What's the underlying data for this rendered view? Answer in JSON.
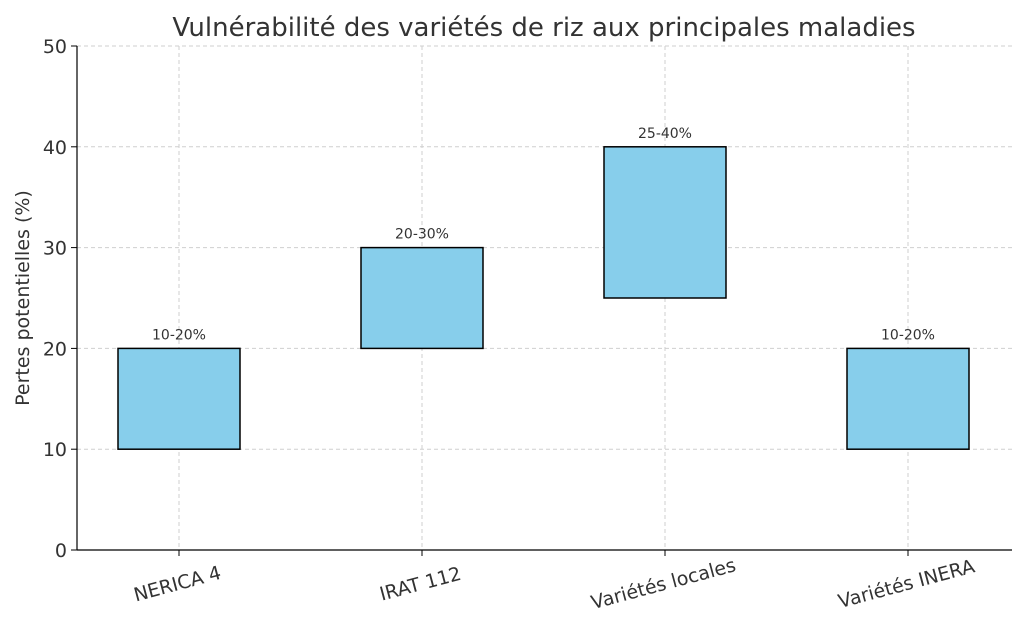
{
  "chart_data": {
    "type": "bar",
    "title": "Vulnérabilité des variétés de riz aux principales maladies",
    "xlabel": "",
    "ylabel": "Pertes potentielles (%)",
    "ylim": [
      0,
      50
    ],
    "yticks": [
      0,
      10,
      20,
      30,
      40,
      50
    ],
    "grid": true,
    "categories": [
      "NERICA 4",
      "IRAT 112",
      "Variétés locales",
      "Variétés INERA"
    ],
    "bottoms": [
      10,
      20,
      25,
      10
    ],
    "tops": [
      20,
      30,
      40,
      20
    ],
    "labels": [
      "10-20%",
      "20-30%",
      "25-40%",
      "10-20%"
    ],
    "bar_color": "#87ceeb",
    "edge_color": "#000000"
  }
}
